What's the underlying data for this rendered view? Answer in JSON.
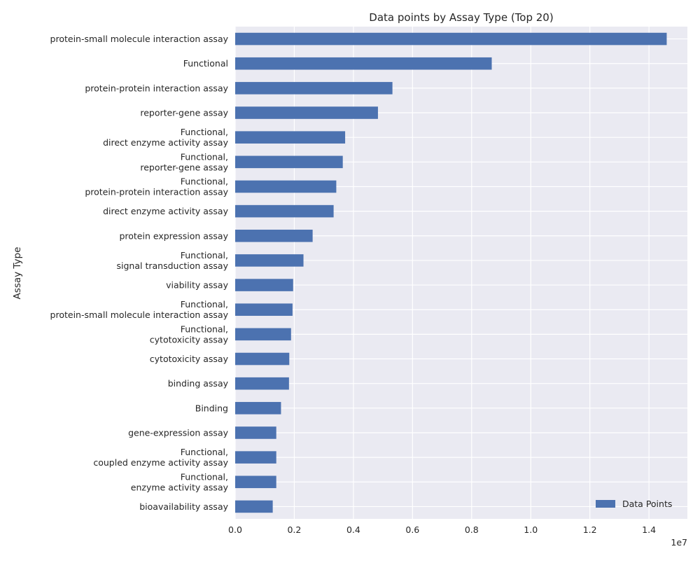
{
  "chart_data": {
    "type": "bar",
    "orientation": "horizontal",
    "title": "Data points by Assay Type (Top 20)",
    "xlabel": "",
    "ylabel": "Assay Type",
    "x_offset_text": "1e7",
    "xlim": [
      0,
      15300000
    ],
    "x_ticks": [
      0,
      2000000,
      4000000,
      6000000,
      8000000,
      10000000,
      12000000,
      14000000
    ],
    "x_tick_labels": [
      "0.0",
      "0.2",
      "0.4",
      "0.6",
      "0.8",
      "1.0",
      "1.2",
      "1.4"
    ],
    "grid": true,
    "legend_position": "lower-right",
    "bar_color": "#4c72b0",
    "background_color": "#eaeaf2",
    "categories": [
      "protein-small molecule interaction assay",
      "Functional",
      "protein-protein interaction assay",
      "reporter-gene assay",
      "Functional,\ndirect enzyme activity assay",
      "Functional,\nreporter-gene assay",
      "Functional,\nprotein-protein interaction assay",
      "direct enzyme activity assay",
      "protein expression assay",
      "Functional,\nsignal transduction assay",
      "viability assay",
      "Functional,\nprotein-small molecule interaction assay",
      "Functional,\ncytotoxicity assay",
      "cytotoxicity assay",
      "binding assay",
      "Binding",
      "gene-expression assay",
      "Functional,\ncoupled enzyme activity assay",
      "Functional,\nenzyme activity assay",
      "bioavailability assay"
    ],
    "series": [
      {
        "name": "Data Points",
        "values": [
          14600000,
          8680000,
          5320000,
          4830000,
          3720000,
          3640000,
          3420000,
          3330000,
          2620000,
          2310000,
          1960000,
          1940000,
          1890000,
          1830000,
          1820000,
          1550000,
          1390000,
          1390000,
          1390000,
          1270000
        ]
      }
    ]
  }
}
